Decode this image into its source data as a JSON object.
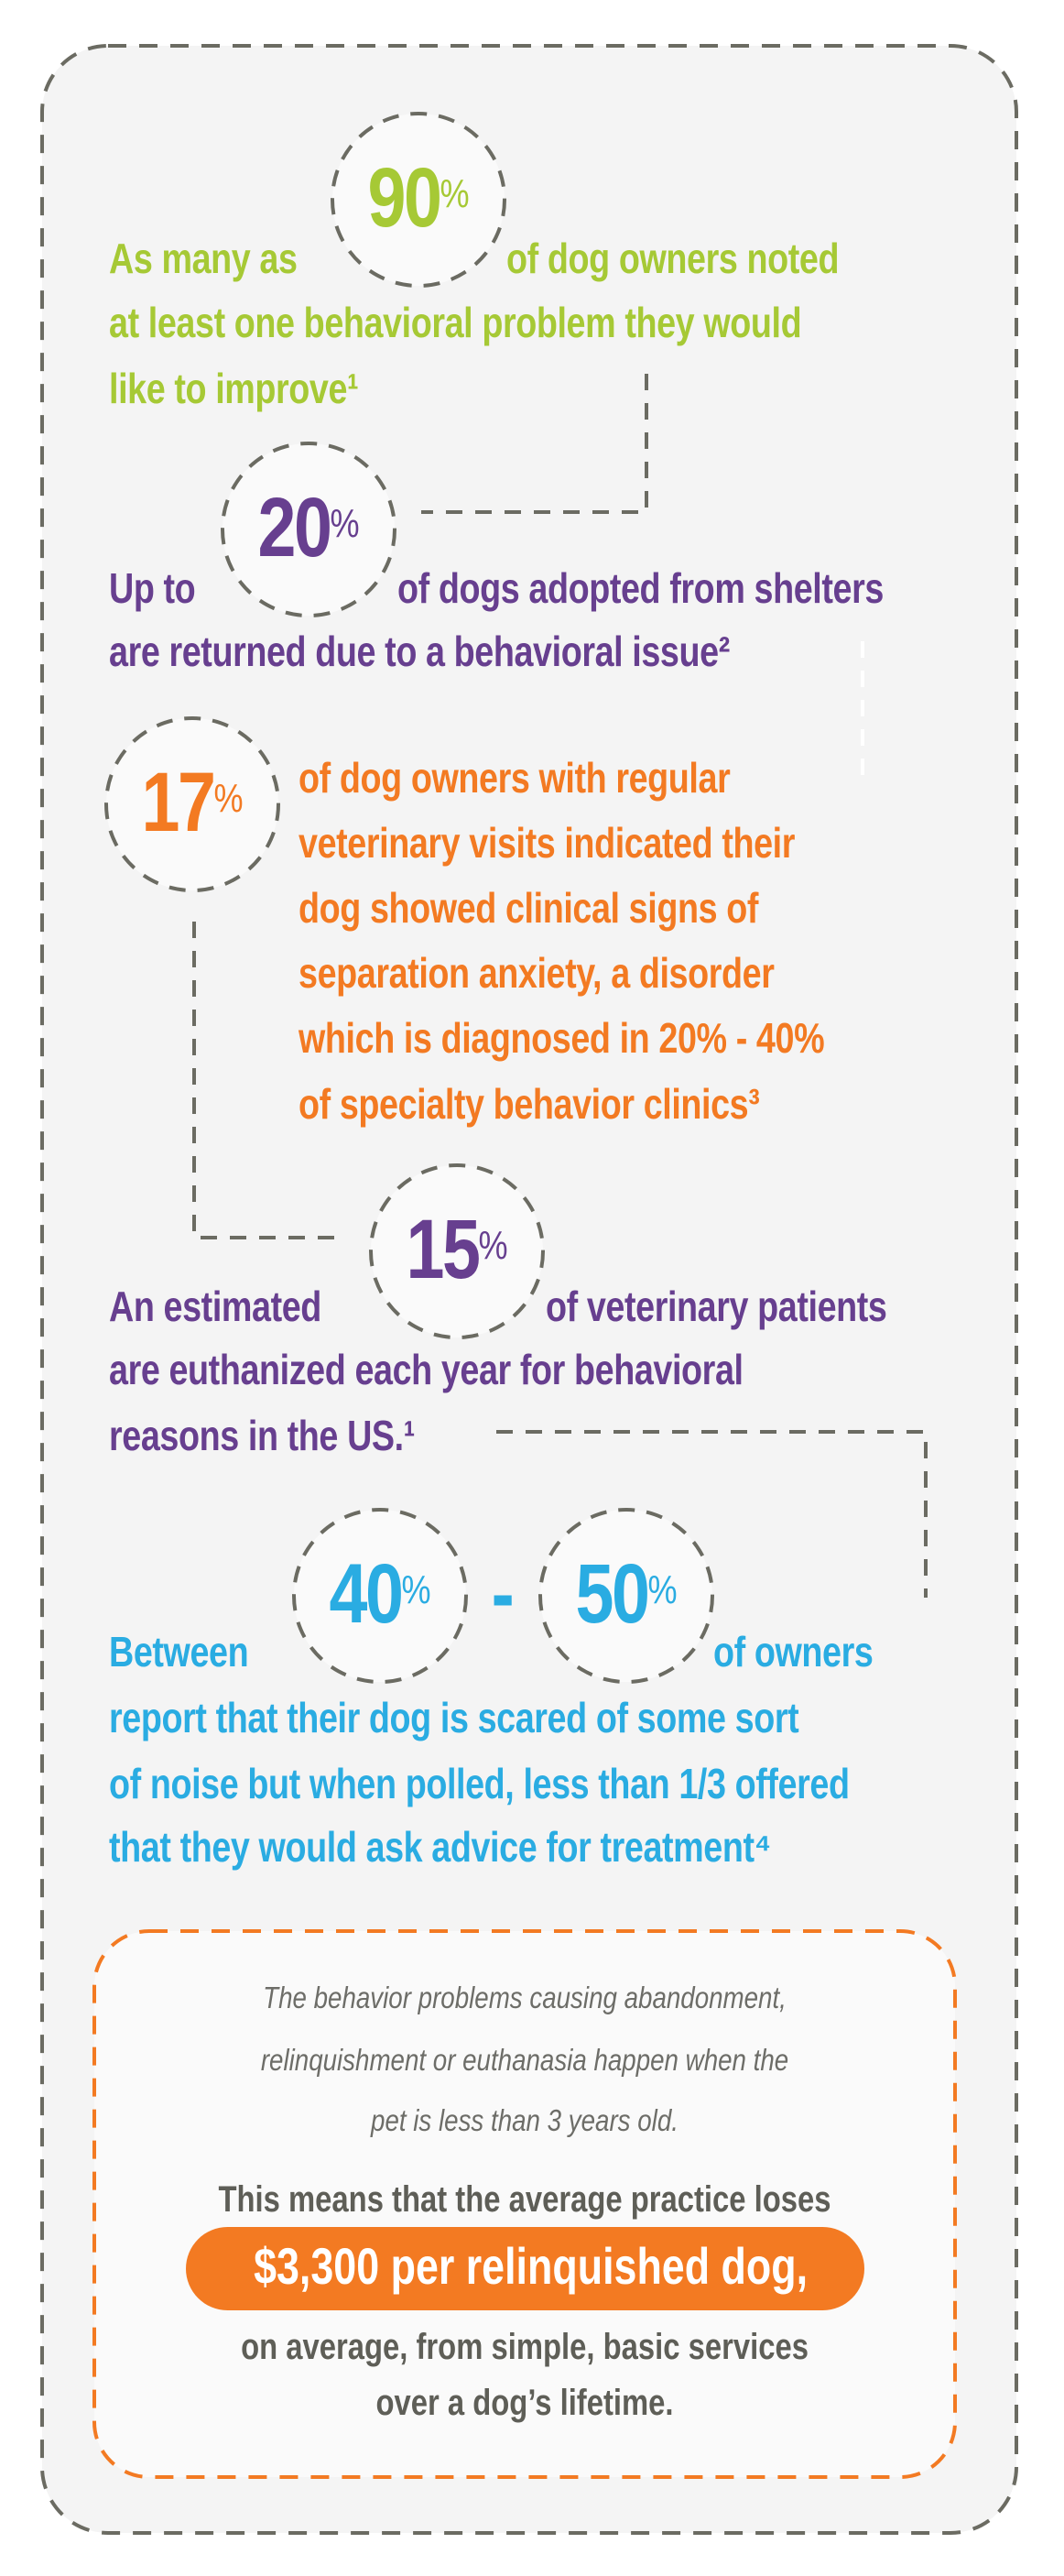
{
  "colors": {
    "green": "#a6c935",
    "purple": "#673f8f",
    "orange": "#f37a22",
    "blue": "#2aace2",
    "dash": "#6b6b62",
    "panel": "#f4f4f4"
  },
  "stat1": {
    "number": "90",
    "unit": "%",
    "prefix": "As many as",
    "lines": [
      "of dog owners noted",
      "at least one behavioral problem they would",
      "like to improve¹"
    ]
  },
  "stat2": {
    "number": "20",
    "unit": "%",
    "prefix": "Up to",
    "lines": [
      "of dogs adopted from shelters",
      "are returned due to a behavioral issue²"
    ]
  },
  "stat3": {
    "number": "17",
    "unit": "%",
    "lines": [
      "of dog owners with regular",
      "veterinary visits indicated their",
      "dog showed clinical signs of",
      "separation anxiety, a disorder",
      "which is diagnosed in 20% - 40%",
      "of specialty behavior clinics³"
    ]
  },
  "stat4": {
    "number": "15",
    "unit": "%",
    "prefix": "An estimated",
    "lines": [
      "of veterinary patients",
      "are euthanized each year for behavioral",
      "reasons in the US.¹"
    ]
  },
  "stat5": {
    "number_a": "40",
    "number_b": "50",
    "unit": "%",
    "separator": "-",
    "prefix": "Between",
    "lines": [
      "of owners",
      "report that their dog is scared of some sort",
      "of noise but when polled, less than 1/3 offered",
      "that they would ask advice for treatment⁴"
    ]
  },
  "callout": {
    "italic_lines": [
      "The behavior problems causing abandonment,",
      "relinquishment or euthanasia happen when the",
      "pet is less than 3 years old."
    ],
    "lead": "This means that the average practice loses",
    "highlight": "$3,300 per relinquished dog,",
    "tail_lines": [
      "on average, from simple, basic services",
      "over a dog’s lifetime."
    ]
  }
}
